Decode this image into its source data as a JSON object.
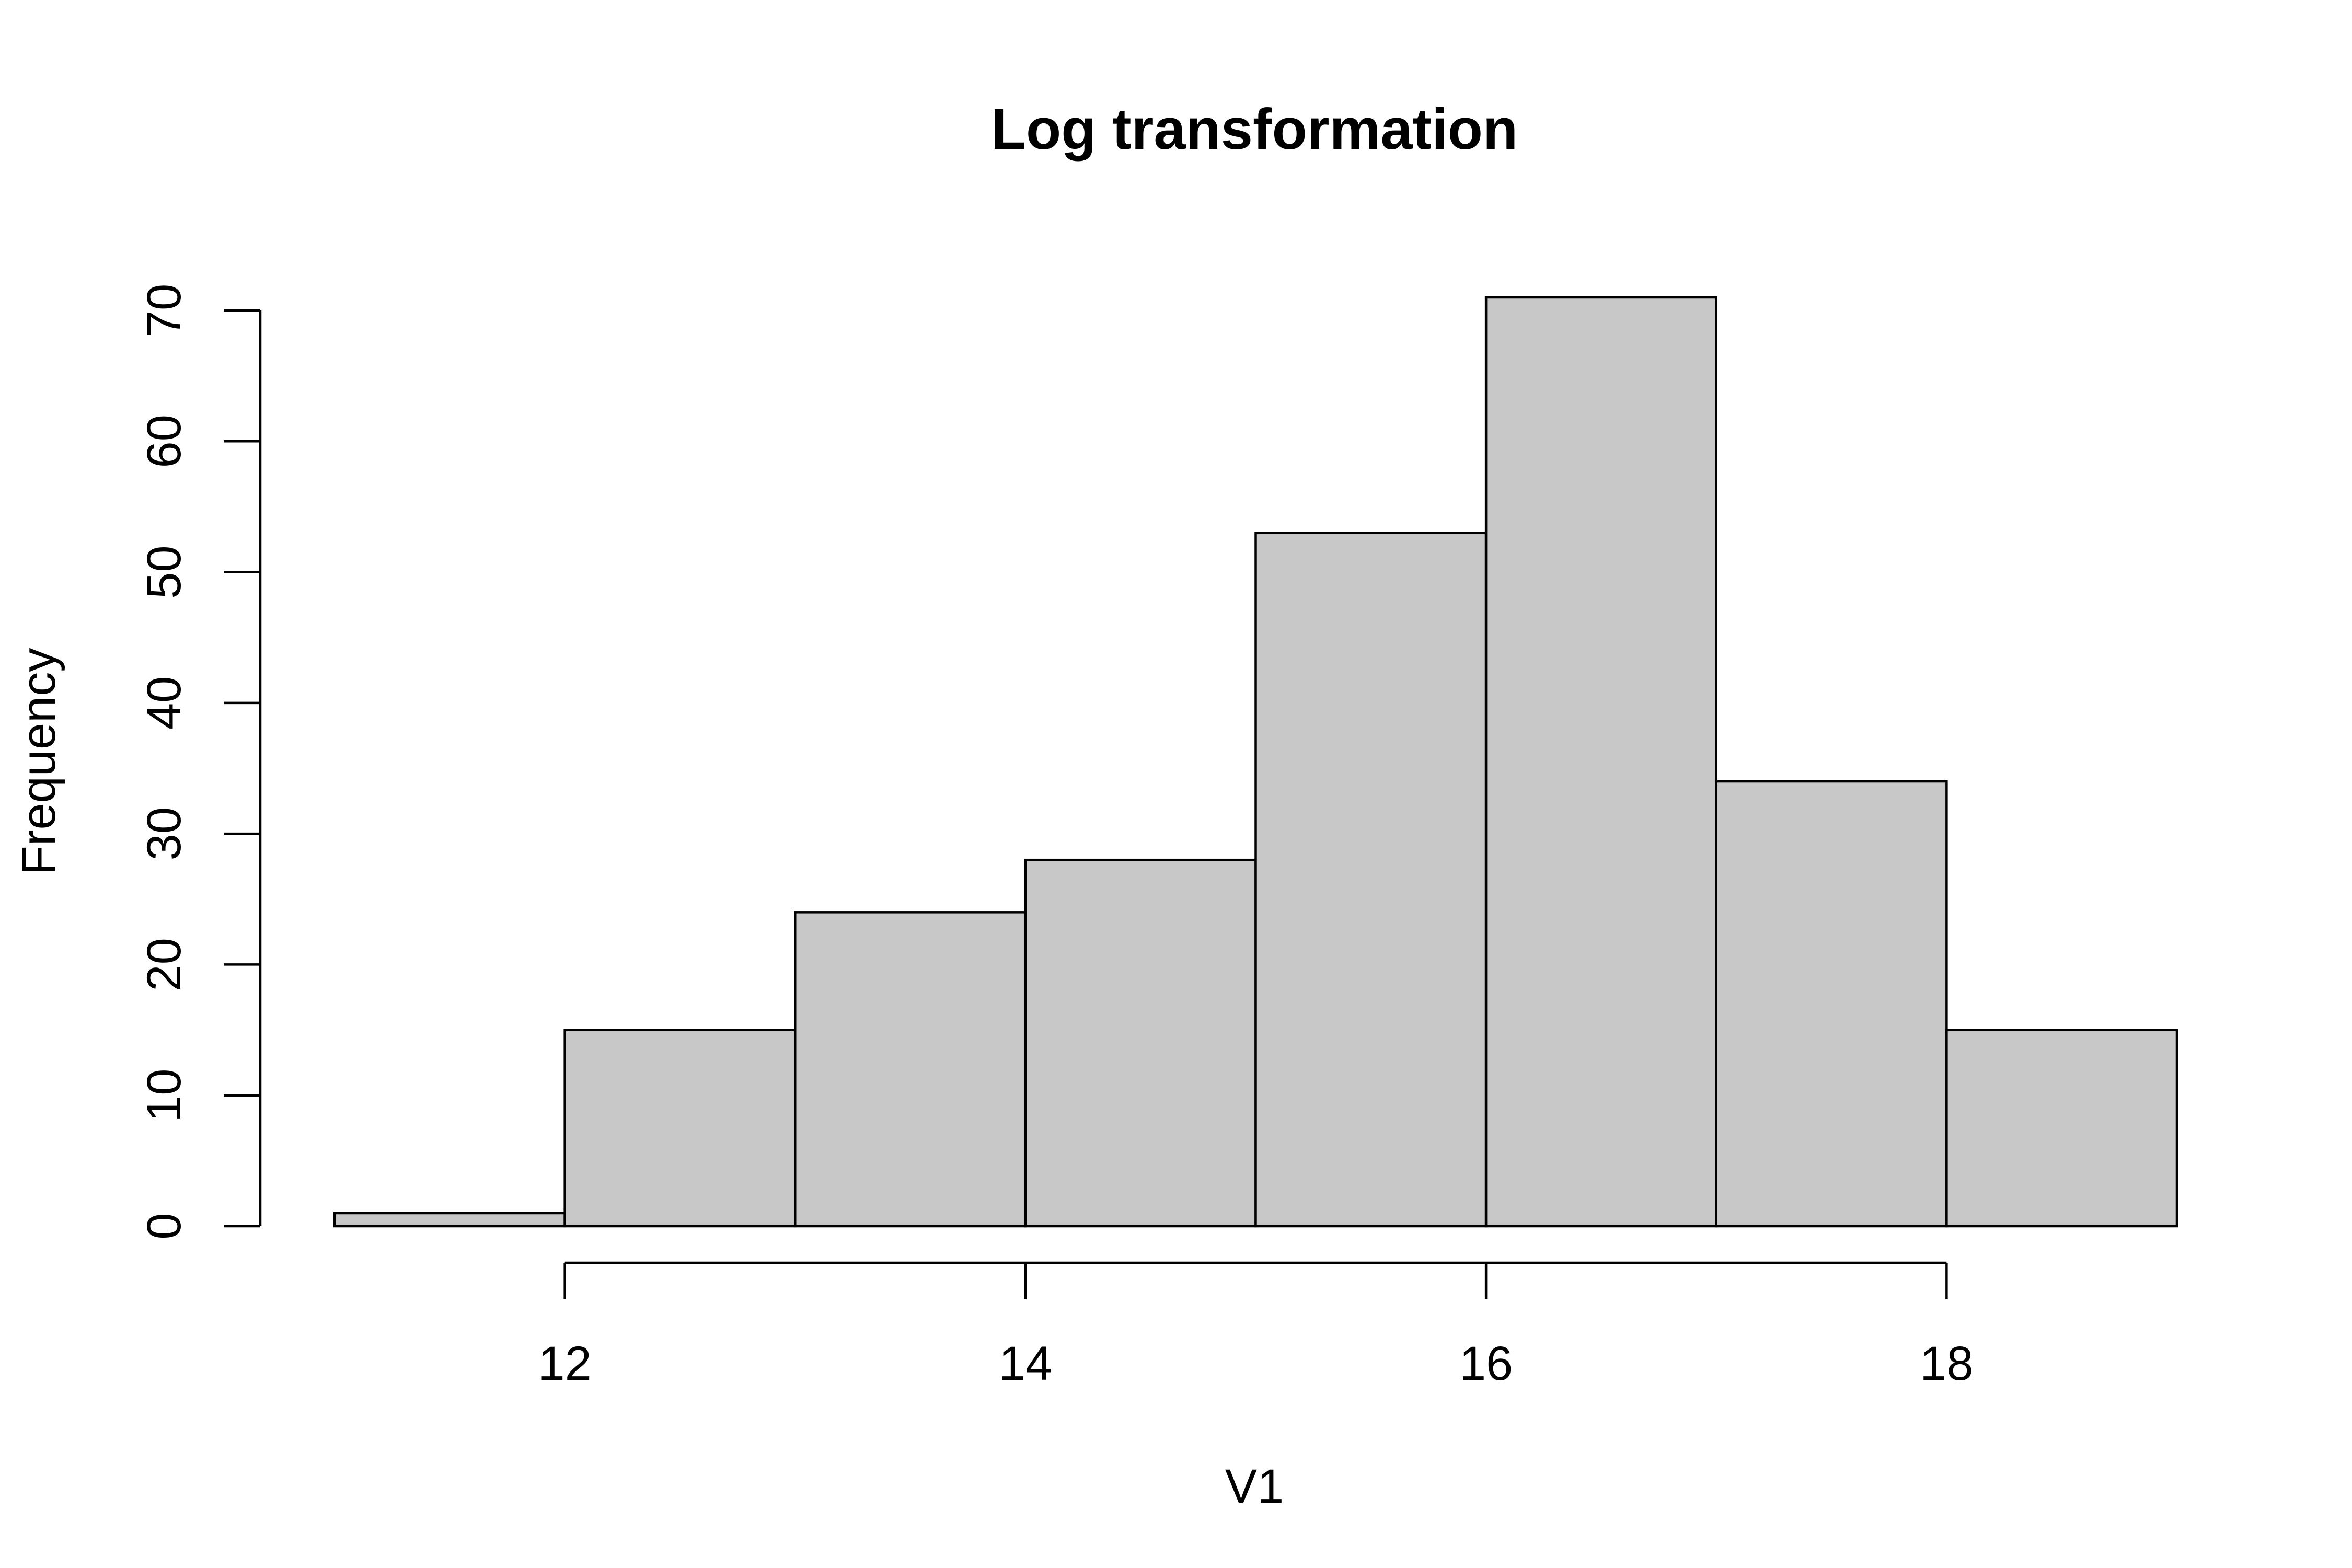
{
  "chart_data": {
    "type": "bar",
    "title": "Log transformation",
    "xlabel": "V1",
    "ylabel": "Frequency",
    "bins": [
      {
        "start": 11,
        "end": 12,
        "count": 1
      },
      {
        "start": 12,
        "end": 13,
        "count": 15
      },
      {
        "start": 13,
        "end": 14,
        "count": 24
      },
      {
        "start": 14,
        "end": 15,
        "count": 28
      },
      {
        "start": 15,
        "end": 16,
        "count": 53
      },
      {
        "start": 16,
        "end": 17,
        "count": 71
      },
      {
        "start": 17,
        "end": 18,
        "count": 34
      },
      {
        "start": 18,
        "end": 19,
        "count": 15
      }
    ],
    "xlim": [
      11,
      19
    ],
    "ylim": [
      0,
      70
    ],
    "x_ticks": [
      12,
      14,
      16,
      18
    ],
    "y_ticks": [
      0,
      10,
      20,
      30,
      40,
      50,
      60,
      70
    ],
    "grid": false,
    "bar_color": "#c8c8c8",
    "outline_color": "#000000"
  }
}
